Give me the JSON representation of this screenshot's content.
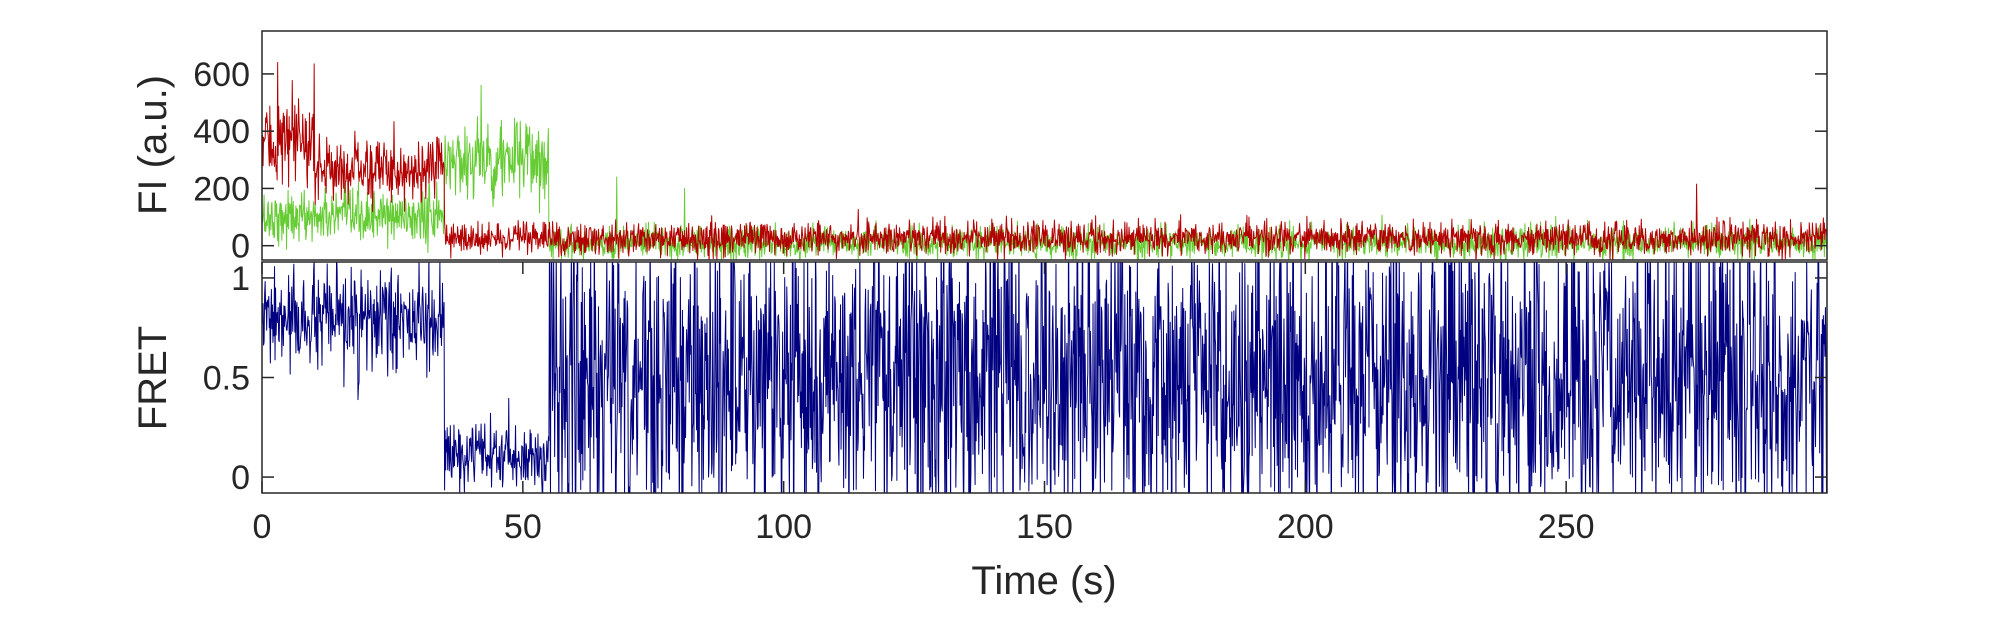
{
  "chart_data": [
    {
      "type": "line",
      "title": "",
      "xlabel": "",
      "ylabel": "FI (a.u.)",
      "xlim": [
        0,
        300
      ],
      "ylim": [
        -50,
        750
      ],
      "x_ticks": [],
      "y_ticks": [
        0,
        200,
        400,
        600
      ],
      "y_tick_labels": [
        "0",
        "200",
        "400",
        "600"
      ],
      "grid": false,
      "legend": "none",
      "sampling_interval_s": 0.1,
      "series": [
        {
          "color": "#66cc33",
          "segments": [
            {
              "x_range": [
                0,
                35
              ],
              "mean": 100,
              "noise_sd": 45
            },
            {
              "x_range": [
                35,
                55
              ],
              "mean": 300,
              "noise_sd": 70
            },
            {
              "x_range": [
                55,
                300
              ],
              "mean": 10,
              "noise_sd": 28
            }
          ],
          "peaks": [
            {
              "x": 42,
              "y": 560
            },
            {
              "x": 68,
              "y": 240
            },
            {
              "x": 81,
              "y": 200
            }
          ]
        },
        {
          "color": "#b30000",
          "segments": [
            {
              "x_range": [
                0,
                10
              ],
              "mean": 360,
              "noise_sd": 70
            },
            {
              "x_range": [
                10,
                35
              ],
              "mean": 270,
              "noise_sd": 55
            },
            {
              "x_range": [
                35,
                300
              ],
              "mean": 25,
              "noise_sd": 28
            }
          ],
          "peaks": [
            {
              "x": 3,
              "y": 640
            },
            {
              "x": 10,
              "y": 635
            },
            {
              "x": 275,
              "y": 215
            }
          ]
        }
      ]
    },
    {
      "type": "line",
      "title": "",
      "xlabel": "Time (s)",
      "ylabel": "FRET",
      "xlim": [
        0,
        300
      ],
      "ylim": [
        -0.08,
        1.08
      ],
      "x_ticks": [
        0,
        50,
        100,
        150,
        200,
        250
      ],
      "x_tick_labels": [
        "0",
        "50",
        "100",
        "150",
        "200",
        "250"
      ],
      "y_ticks": [
        0,
        0.5,
        1
      ],
      "y_tick_labels": [
        "0",
        "0.5",
        "1"
      ],
      "grid": false,
      "legend": "none",
      "sampling_interval_s": 0.1,
      "series": [
        {
          "color": "#000080",
          "segments": [
            {
              "x_range": [
                0,
                35
              ],
              "mean": 0.78,
              "noise_sd": 0.12
            },
            {
              "x_range": [
                35,
                55
              ],
              "mean": 0.1,
              "noise_sd": 0.08
            },
            {
              "x_range": [
                55,
                300
              ],
              "mean": 0.5,
              "noise_sd": 0.4
            }
          ]
        }
      ]
    }
  ]
}
